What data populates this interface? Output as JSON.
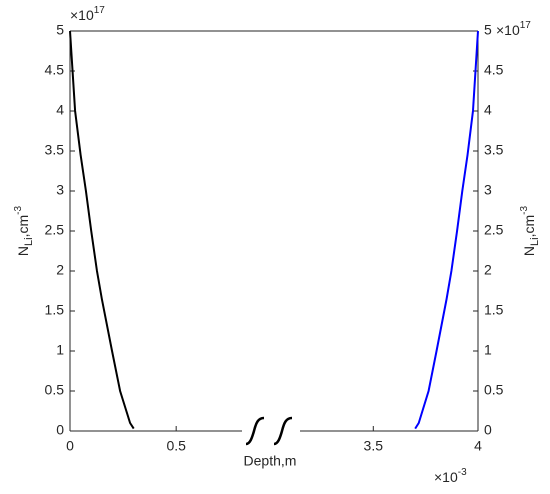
{
  "chart_data": {
    "type": "line",
    "xlabel": "Depth,m",
    "ylabel": {
      "base": "N",
      "sub": "Li",
      "text": ",cm",
      "sup": "-3"
    },
    "y2label": {
      "base": "N",
      "sub": "Li",
      "text": ",cm",
      "sup": "-3"
    },
    "x_multiplier": {
      "base": "×10",
      "exp": "-3"
    },
    "y_multiplier": {
      "base": "×10",
      "exp": "17"
    },
    "y2_multiplier": {
      "base": "×10",
      "exp": "17"
    },
    "xlim": [
      0,
      4
    ],
    "xbreak": [
      0.81,
      3.15
    ],
    "xticks": [
      0,
      0.5,
      3.5,
      4
    ],
    "ylim": [
      0,
      5
    ],
    "yticks": [
      0,
      0.5,
      1,
      1.5,
      2,
      2.5,
      3,
      3.5,
      4,
      4.5,
      5
    ],
    "y2lim": [
      0,
      5
    ],
    "y2ticks": [
      0,
      0.5,
      1,
      1.5,
      2,
      2.5,
      3,
      3.5,
      4,
      4.5,
      5
    ],
    "series": [
      {
        "color": "#000000",
        "x": [
          0,
          0.024,
          0.05,
          0.075,
          0.1,
          0.127,
          0.15,
          0.198,
          0.236,
          0.283,
          0.3
        ],
        "values": [
          5,
          4,
          3.45,
          3,
          2.5,
          2,
          1.65,
          1,
          0.5,
          0.1,
          0.03
        ]
      },
      {
        "color": "#0000ff",
        "axis": "y2",
        "x": [
          3.7,
          3.717,
          3.764,
          3.802,
          3.85,
          3.873,
          3.9,
          3.925,
          3.95,
          3.976,
          4
        ],
        "values": [
          0.03,
          0.1,
          0.5,
          1,
          1.65,
          2,
          2.5,
          3,
          3.45,
          4,
          5
        ]
      }
    ]
  }
}
